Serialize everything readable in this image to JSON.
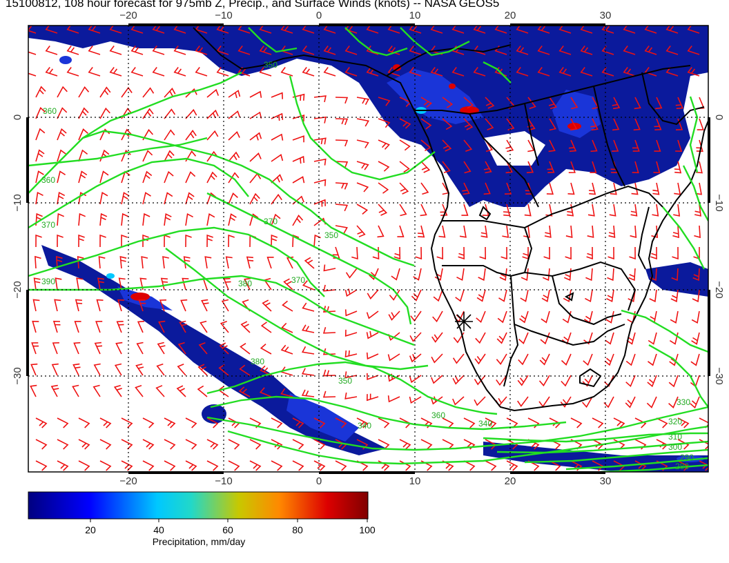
{
  "title": "15100812, 108 hour forecast for 975mb Z, Precip., and Surface Winds (knots) -- NASA GEOS5",
  "map": {
    "region": "South Atlantic / Southern Africa",
    "lon_labels": [
      "−20",
      "−10",
      "0",
      "10",
      "20",
      "30"
    ],
    "lat_labels": [
      "0",
      "−10",
      "−20",
      "−30"
    ],
    "contour_labels": [
      "360",
      "350",
      "370",
      "390",
      "380",
      "370",
      "360",
      "350",
      "340",
      "330",
      "320",
      "310",
      "300",
      "290",
      "280",
      "360",
      "370",
      "380",
      "350",
      "340"
    ],
    "marker": "site-asterisk",
    "colors": {
      "contour": "#22dd22",
      "wind_barb": "#ee1111",
      "coastline": "#000000",
      "precip_low": "#08088a",
      "precip_high": "#7a0000"
    }
  },
  "colorbar": {
    "tick_labels": [
      "20",
      "40",
      "60",
      "80",
      "100"
    ],
    "label": "Precipitation, mm/day",
    "stops": [
      "#000080",
      "#0000ff",
      "#00c8ff",
      "#22d8c8",
      "#c8c800",
      "#ff8800",
      "#dd0000",
      "#800000"
    ]
  }
}
